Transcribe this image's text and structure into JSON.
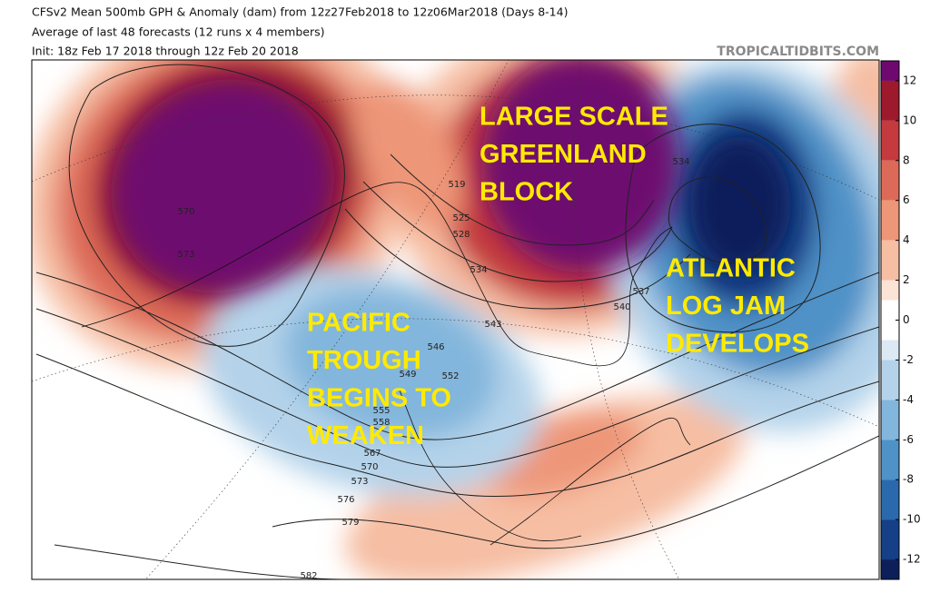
{
  "header": {
    "title": "CFSv2 Mean 500mb GPH & Anomaly (dam) from 12z27Feb2018 to 12z06Mar2018 (Days 8-14)",
    "subtitle": "Average of last 48 forecasts (12 runs x 4 members)",
    "init": "Init: 18z Feb 17 2018 through 12z Feb 20 2018",
    "credit": "TROPICALTIDBITS.COM"
  },
  "annotations": [
    {
      "lines": [
        "LARGE SCALE",
        "GREENLAND",
        "BLOCK"
      ]
    },
    {
      "lines": [
        "ATLANTIC",
        "LOG JAM",
        "DEVELOPS"
      ]
    },
    {
      "lines": [
        "PACIFIC",
        "TROUGH",
        "BEGINS TO",
        "WEAKEN"
      ]
    }
  ],
  "contour_labels": [
    570,
    573,
    519,
    525,
    528,
    534,
    534,
    537,
    540,
    543,
    546,
    549,
    552,
    555,
    558,
    567,
    570,
    573,
    576,
    579,
    582
  ],
  "colorbar": {
    "lim": [
      -13,
      13
    ],
    "ticks": [
      12,
      10,
      8,
      6,
      4,
      2,
      0,
      -2,
      -4,
      -6,
      -8,
      -10,
      -12
    ],
    "bands": [
      {
        "from": 12,
        "to": 13,
        "color": "#6e0a6f"
      },
      {
        "from": 10,
        "to": 12,
        "color": "#9c1a2c"
      },
      {
        "from": 8,
        "to": 10,
        "color": "#c43a3e"
      },
      {
        "from": 6,
        "to": 8,
        "color": "#dd6a58"
      },
      {
        "from": 4,
        "to": 6,
        "color": "#ee9678"
      },
      {
        "from": 2,
        "to": 4,
        "color": "#f6bea3"
      },
      {
        "from": 1,
        "to": 2,
        "color": "#fbe3d5"
      },
      {
        "from": -1,
        "to": 1,
        "color": "#ffffff"
      },
      {
        "from": -2,
        "to": -1,
        "color": "#dce9f4"
      },
      {
        "from": -4,
        "to": -2,
        "color": "#b4d3ea"
      },
      {
        "from": -6,
        "to": -4,
        "color": "#83b6dc"
      },
      {
        "from": -8,
        "to": -6,
        "color": "#4f92c7"
      },
      {
        "from": -10,
        "to": -8,
        "color": "#2a69ac"
      },
      {
        "from": -12,
        "to": -10,
        "color": "#153f86"
      },
      {
        "from": -13,
        "to": -12,
        "color": "#0d1f5a"
      }
    ]
  }
}
